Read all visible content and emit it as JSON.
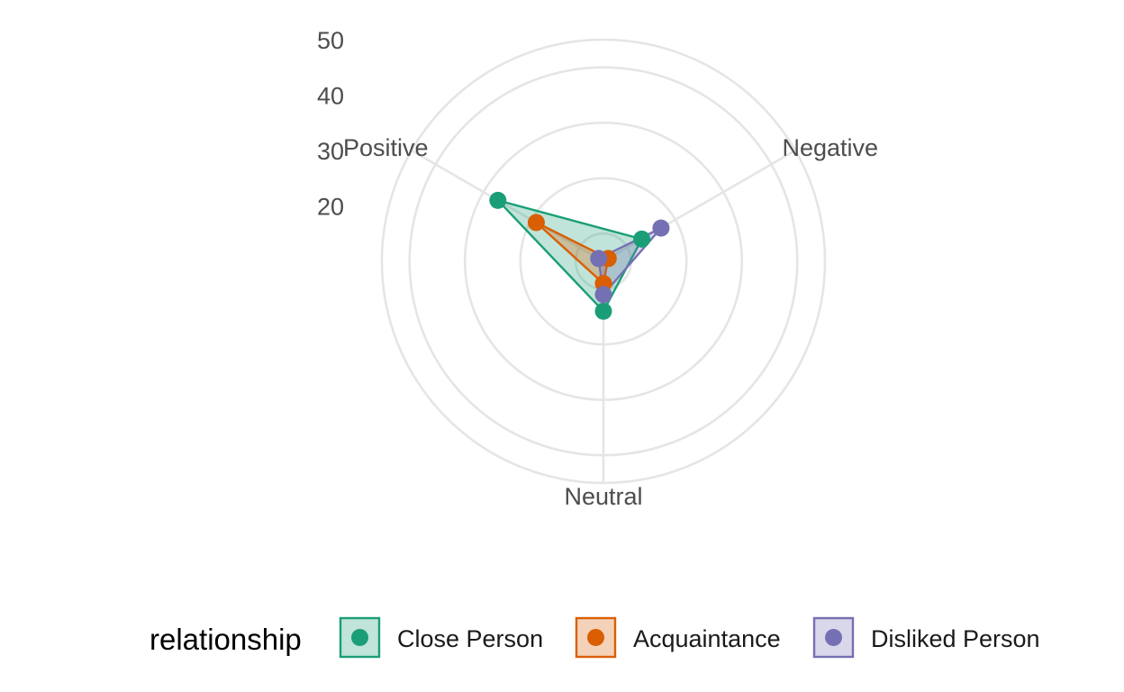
{
  "chart_data": {
    "type": "radar",
    "axes": [
      "Positive",
      "Negative",
      "Neutral"
    ],
    "radial_ticks": [
      20,
      30,
      40,
      50
    ],
    "radial_range": [
      15,
      55
    ],
    "legend": {
      "title": "relationship",
      "position": "bottom"
    },
    "series": [
      {
        "name": "Close Person",
        "color": "#1b9e77",
        "values": {
          "Positive": 37,
          "Negative": 23,
          "Neutral": 24
        }
      },
      {
        "name": "Acquaintance",
        "color": "#d95f02",
        "values": {
          "Positive": 29,
          "Negative": 16,
          "Neutral": 19
        }
      },
      {
        "name": "Disliked Person",
        "color": "#7570b3",
        "values": {
          "Positive": 16,
          "Negative": 27,
          "Neutral": 21
        }
      }
    ]
  }
}
